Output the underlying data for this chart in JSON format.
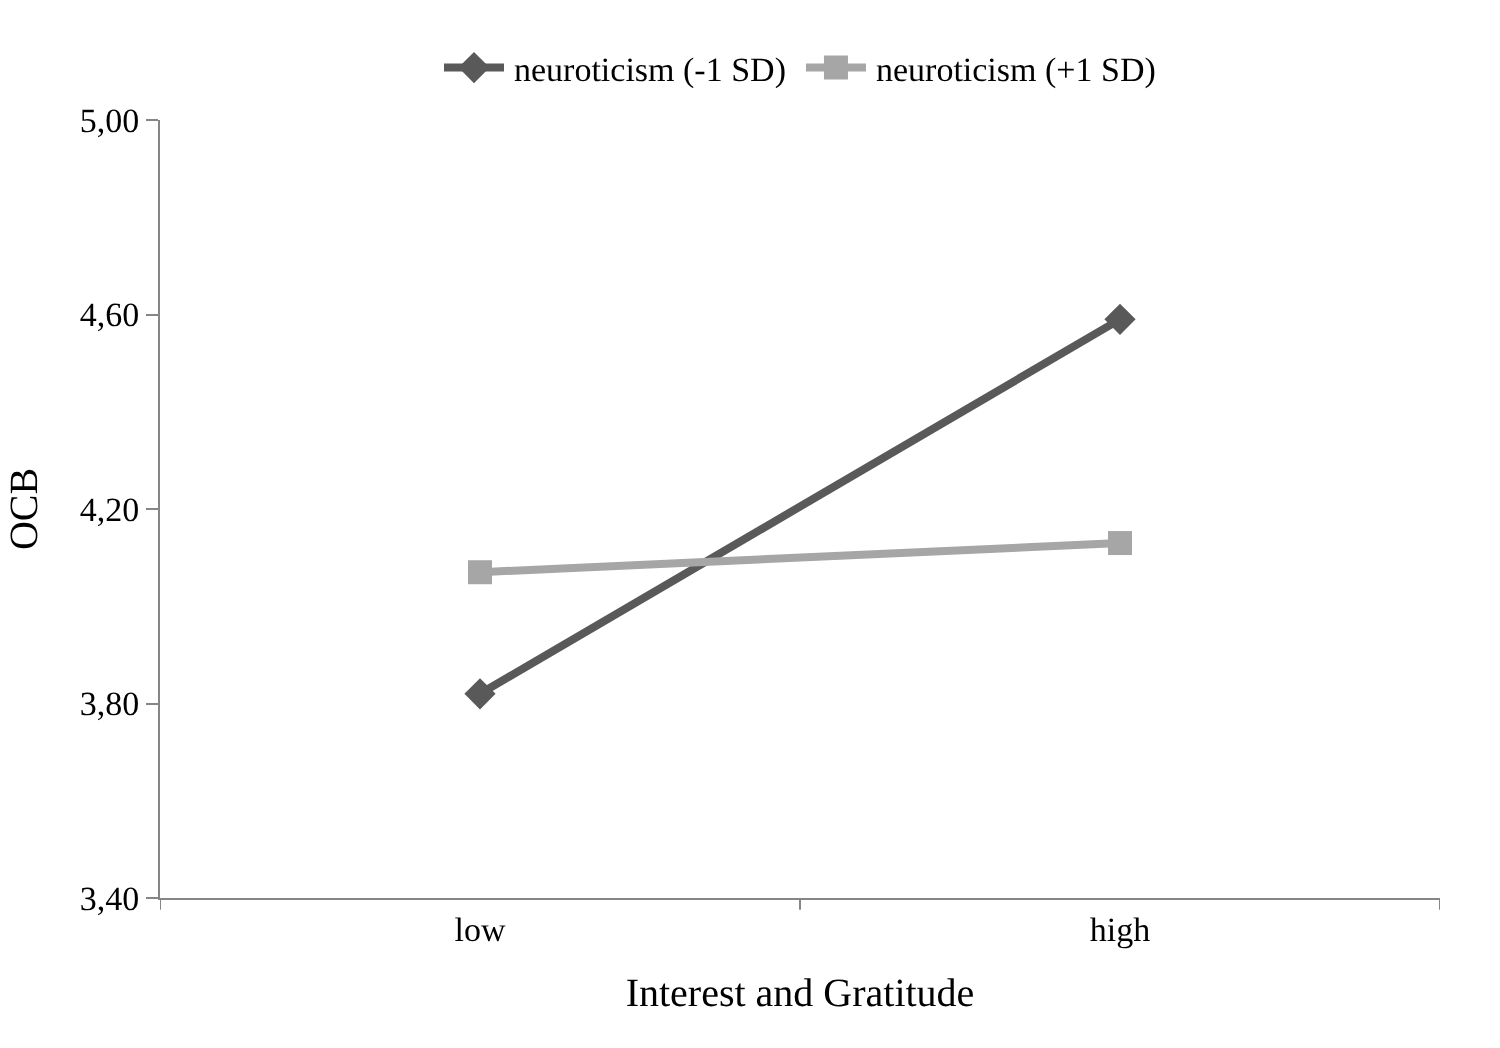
{
  "chart_data": {
    "type": "line",
    "xlabel": "Interest and Gratitude",
    "ylabel": "OCB",
    "categories": [
      "low",
      "high"
    ],
    "series": [
      {
        "name": "neuroticism (-1 SD)",
        "color": "#595959",
        "marker": "diamond",
        "values": [
          3.82,
          4.59
        ]
      },
      {
        "name": "neuroticism (+1 SD)",
        "color": "#a6a6a6",
        "marker": "square",
        "values": [
          4.07,
          4.13
        ]
      }
    ],
    "ylim": [
      3.4,
      5.0
    ],
    "yticks": [
      {
        "value": 3.4,
        "label": "3,40"
      },
      {
        "value": 3.8,
        "label": "3,80"
      },
      {
        "value": 4.2,
        "label": "4,20"
      },
      {
        "value": 4.6,
        "label": "4,60"
      },
      {
        "value": 5.0,
        "label": "5,00"
      }
    ],
    "legend": "top",
    "line_style": "solid"
  }
}
